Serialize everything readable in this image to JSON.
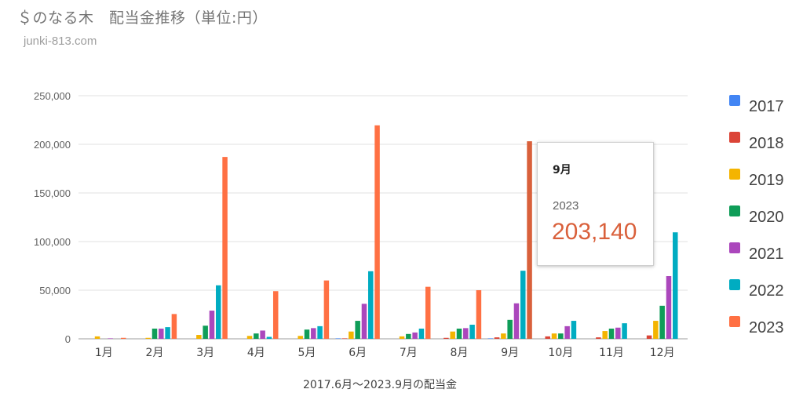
{
  "header": {
    "title": "＄のなる木　配当金推移（単位:円）",
    "subtitle": "junki-813.com"
  },
  "colors": {
    "2017": "#4285f4",
    "2018": "#db4437",
    "2019": "#f4b400",
    "2020": "#0f9d58",
    "2021": "#ab47bc",
    "2022": "#00acc1",
    "2023": "#ff7043",
    "highlight": "#d9603b",
    "grid": "#e0e0e0",
    "axis": "#9e9e9e"
  },
  "chart_data": {
    "type": "bar",
    "title": "＄のなる木　配当金推移（単位:円）",
    "xlabel": "2017.6月〜2023.9月の配当金",
    "ylabel": "",
    "ylim": [
      0,
      250000
    ],
    "yticks": [
      "0",
      "50,000",
      "100,000",
      "150,000",
      "200,000",
      "250,000"
    ],
    "grid": true,
    "legend_position": "right",
    "categories": [
      "1月",
      "2月",
      "3月",
      "4月",
      "5月",
      "6月",
      "7月",
      "8月",
      "9月",
      "10月",
      "11月",
      "12月"
    ],
    "series": [
      {
        "name": "2017",
        "values": [
          0,
          0,
          0,
          0,
          0,
          500,
          0,
          0,
          500,
          0,
          0,
          0
        ]
      },
      {
        "name": "2018",
        "values": [
          0,
          0,
          0,
          0,
          0,
          500,
          0,
          1000,
          1500,
          2500,
          1500,
          3500
        ]
      },
      {
        "name": "2019",
        "values": [
          2500,
          1000,
          4000,
          3000,
          3000,
          7500,
          2500,
          7500,
          5500,
          5500,
          8000,
          18500
        ]
      },
      {
        "name": "2020",
        "values": [
          0,
          10500,
          13500,
          5500,
          9500,
          18500,
          5000,
          10500,
          19500,
          5500,
          10500,
          34000
        ]
      },
      {
        "name": "2021",
        "values": [
          500,
          10500,
          29000,
          8500,
          11000,
          36000,
          6500,
          11000,
          36500,
          13000,
          11500,
          64500
        ]
      },
      {
        "name": "2022",
        "values": [
          0,
          12000,
          55000,
          2000,
          13000,
          69500,
          10500,
          14500,
          70000,
          18500,
          16000,
          109500
        ]
      },
      {
        "name": "2023",
        "values": [
          1000,
          25500,
          187000,
          49000,
          60000,
          219500,
          53500,
          50000,
          203140,
          0,
          0,
          0
        ]
      }
    ],
    "tooltip": {
      "category": "9月",
      "series": "2023",
      "value": "203,140"
    }
  }
}
